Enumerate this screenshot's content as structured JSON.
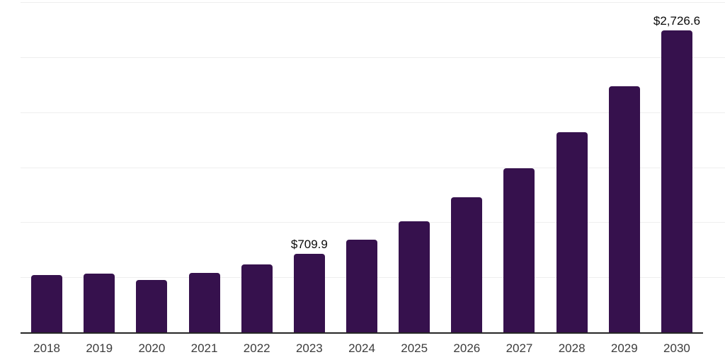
{
  "chart_data": {
    "type": "bar",
    "title": "",
    "xlabel": "",
    "ylabel": "",
    "categories": [
      "2018",
      "2019",
      "2020",
      "2021",
      "2022",
      "2023",
      "2024",
      "2025",
      "2026",
      "2027",
      "2028",
      "2029",
      "2030"
    ],
    "values": [
      516,
      530,
      474,
      539,
      612,
      709.9,
      838,
      1004,
      1217,
      1483,
      1809,
      2222,
      2726.6
    ],
    "data_labels": [
      "",
      "",
      "",
      "",
      "",
      "$709.9",
      "",
      "",
      "",
      "",
      "",
      "",
      "$2,726.6"
    ],
    "labeled_values_note": "only 2023 and 2030 carry visible data labels; other values estimated from bar heights",
    "ylim": [
      0,
      2980
    ],
    "y_axis_tick_labels": "none",
    "gridline_count": 6,
    "grid": "horizontal light gray lines, no y tick labels",
    "legend_position": "none"
  },
  "colors": {
    "bar_fill": "#36114D",
    "axis_line": "#262626",
    "gridline": "#EEEEEE",
    "x_tick_label": "#3C3C3C",
    "data_label": "#0A0A0A",
    "background": "#FFFFFF"
  }
}
